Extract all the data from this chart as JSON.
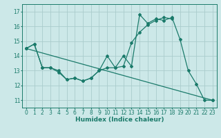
{
  "background_color": "#cce8e8",
  "grid_color": "#aacccc",
  "line_color": "#1a7a6a",
  "marker_style": "D",
  "marker_size": 2.0,
  "linewidth": 0.9,
  "xlabel": "Humidex (Indice chaleur)",
  "xlabel_fontsize": 6.5,
  "tick_fontsize": 5.5,
  "xlim": [
    -0.5,
    23.5
  ],
  "ylim": [
    10.5,
    17.5
  ],
  "yticks": [
    11,
    12,
    13,
    14,
    15,
    16,
    17
  ],
  "xticks": [
    0,
    1,
    2,
    3,
    4,
    5,
    6,
    7,
    8,
    9,
    10,
    11,
    12,
    13,
    14,
    15,
    16,
    17,
    18,
    19,
    20,
    21,
    22,
    23
  ],
  "series": [
    {
      "x": [
        0,
        1,
        2,
        3,
        4,
        5,
        6,
        7,
        8,
        9,
        10,
        11,
        12,
        13,
        14,
        15,
        16,
        17,
        18
      ],
      "y": [
        14.5,
        14.8,
        13.2,
        13.2,
        12.9,
        12.4,
        12.5,
        12.3,
        12.5,
        13.0,
        14.0,
        13.2,
        13.3,
        14.9,
        15.6,
        16.1,
        16.4,
        16.6,
        16.5
      ]
    },
    {
      "x": [
        0,
        1,
        2,
        3,
        4,
        5,
        6,
        7,
        8,
        9,
        10,
        11,
        12,
        13,
        14,
        15,
        16,
        17,
        18,
        19,
        20,
        21,
        22,
        23
      ],
      "y": [
        14.5,
        14.8,
        13.2,
        13.2,
        13.0,
        12.4,
        12.5,
        12.3,
        12.5,
        13.0,
        13.2,
        13.2,
        14.0,
        13.3,
        16.8,
        16.2,
        16.5,
        16.4,
        16.6,
        15.1,
        13.0,
        12.1,
        11.0,
        11.0
      ]
    },
    {
      "x": [
        0,
        23
      ],
      "y": [
        14.5,
        11.0
      ]
    }
  ]
}
